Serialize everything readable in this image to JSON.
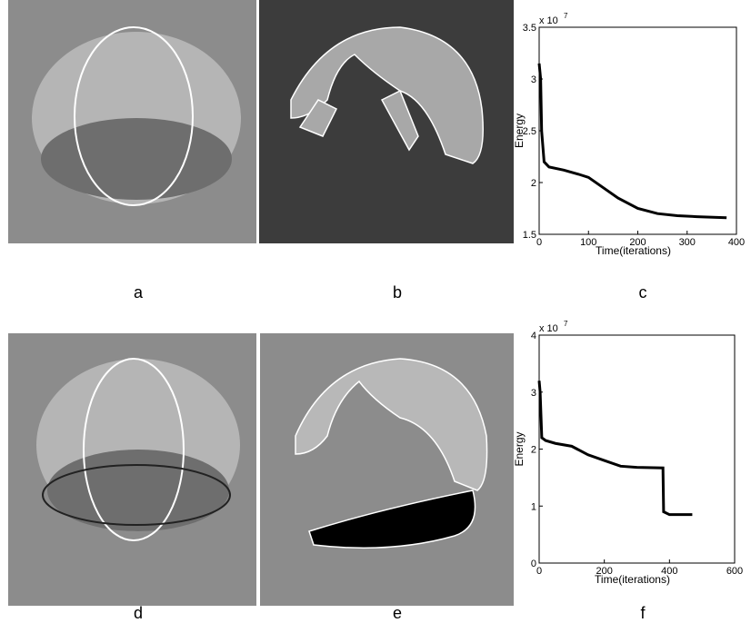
{
  "panel_labels": [
    "a",
    "b",
    "c",
    "d",
    "e",
    "f"
  ],
  "chart_data": [
    {
      "type": "line",
      "xlabel": "Time(iterations)",
      "ylabel": "Energy",
      "y_multiplier": "x 10",
      "y_exponent": "7",
      "xlim": [
        0,
        400
      ],
      "xticks": [
        0,
        100,
        200,
        300,
        400
      ],
      "ylim": [
        1.5,
        3.5
      ],
      "yticks": [
        1.5,
        2,
        2.5,
        3,
        3.5
      ],
      "series": [
        {
          "color": "#000000",
          "x": [
            0,
            3,
            5,
            10,
            20,
            50,
            80,
            100,
            130,
            160,
            200,
            240,
            280,
            320,
            380
          ],
          "values": [
            3.15,
            3.0,
            2.5,
            2.2,
            2.15,
            2.12,
            2.08,
            2.05,
            1.95,
            1.85,
            1.75,
            1.7,
            1.68,
            1.67,
            1.66
          ]
        }
      ]
    },
    {
      "type": "line",
      "xlabel": "Time(iterations)",
      "ylabel": "Energy",
      "y_multiplier": "x 10",
      "y_exponent": "7",
      "xlim": [
        0,
        600
      ],
      "xticks": [
        0,
        200,
        400,
        600
      ],
      "ylim": [
        0,
        4
      ],
      "yticks": [
        0,
        1,
        2,
        3,
        4
      ],
      "series": [
        {
          "color": "#000000",
          "x": [
            0,
            3,
            8,
            20,
            50,
            100,
            150,
            200,
            250,
            300,
            380,
            382,
            400,
            470
          ],
          "values": [
            3.2,
            3.0,
            2.2,
            2.15,
            2.1,
            2.05,
            1.9,
            1.8,
            1.7,
            1.68,
            1.67,
            0.9,
            0.85,
            0.85
          ]
        }
      ]
    }
  ]
}
